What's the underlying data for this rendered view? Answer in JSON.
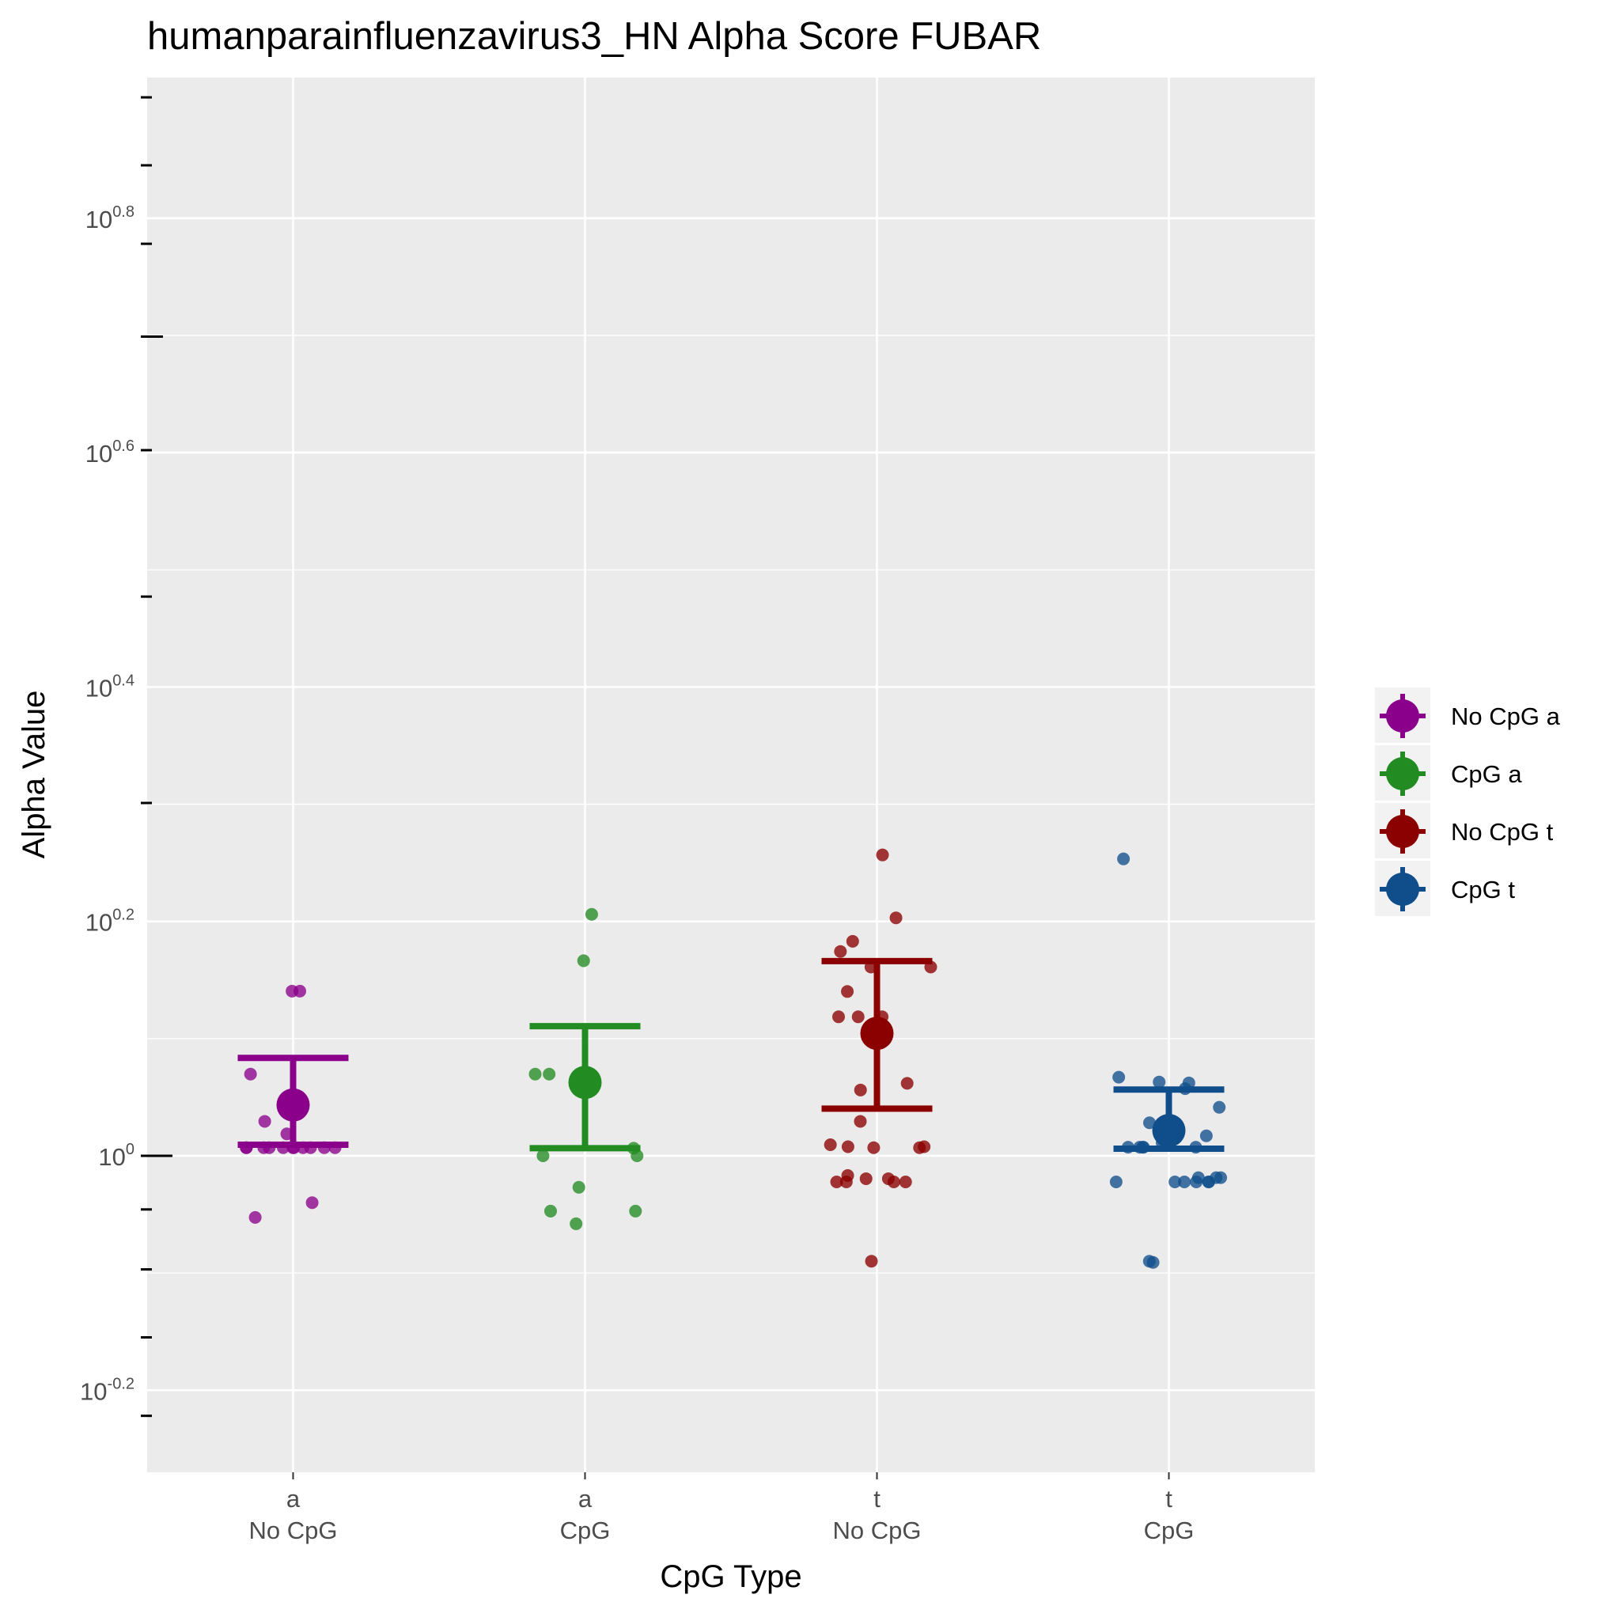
{
  "chart_data": {
    "type": "scatter",
    "title": "humanparainfluenzavirus3_HN Alpha Score FUBAR",
    "xlabel": "CpG Type",
    "ylabel": "Alpha Value",
    "y_scale": "log10",
    "y_exponent_range": [
      -0.27,
      0.92
    ],
    "y_tick_base": "10",
    "y_tick_exponents": [
      "-0.2",
      "0",
      "0.2",
      "0.4",
      "0.6",
      "0.8"
    ],
    "x_categories": [
      {
        "top": "a",
        "bottom": "No CpG"
      },
      {
        "top": "a",
        "bottom": "CpG"
      },
      {
        "top": "t",
        "bottom": "No CpG"
      },
      {
        "top": "t",
        "bottom": "CpG"
      }
    ],
    "grid": true,
    "legend_position": "right",
    "series": [
      {
        "name": "No CpG a",
        "color": "#8b008b",
        "mean": 1.105,
        "ci": [
          1.022,
          1.212
        ],
        "points": [
          1.382,
          1.382,
          1.174,
          1.07,
          1.044,
          1.016,
          1.016,
          1.016,
          1.016,
          1.016,
          1.016,
          1.016,
          1.016,
          1.016,
          1.016,
          1.016,
          0.912,
          0.886
        ]
      },
      {
        "name": "CpG a",
        "color": "#228b22",
        "mean": 1.155,
        "ci": [
          1.015,
          1.29
        ],
        "points": [
          1.607,
          1.467,
          1.174,
          1.174,
          1.015,
          1.0,
          1.0,
          0.94,
          0.897,
          0.897,
          0.875
        ]
      },
      {
        "name": "No CpG t",
        "color": "#8b0000",
        "mean": 1.272,
        "ci": [
          1.097,
          1.466
        ],
        "points": [
          1.806,
          1.596,
          1.524,
          1.494,
          1.449,
          1.449,
          1.381,
          1.314,
          1.314,
          1.314,
          1.153,
          1.138,
          1.07,
          1.022,
          1.018,
          1.018,
          1.016,
          1.016,
          0.962,
          0.956,
          0.956,
          0.95,
          0.95,
          0.95,
          0.95,
          0.813
        ]
      },
      {
        "name": "CpG t",
        "color": "#104e8b",
        "mean": 1.051,
        "ci": [
          1.014,
          1.139
        ],
        "points": [
          1.792,
          1.167,
          1.156,
          1.154,
          1.141,
          1.1,
          1.067,
          1.051,
          1.051,
          1.041,
          1.04,
          1.032,
          1.026,
          1.017,
          1.017,
          1.017,
          1.017,
          1.017,
          0.958,
          0.95,
          0.958,
          0.958,
          0.95,
          0.95,
          0.95,
          0.95,
          0.95,
          0.813,
          0.811
        ]
      }
    ]
  }
}
